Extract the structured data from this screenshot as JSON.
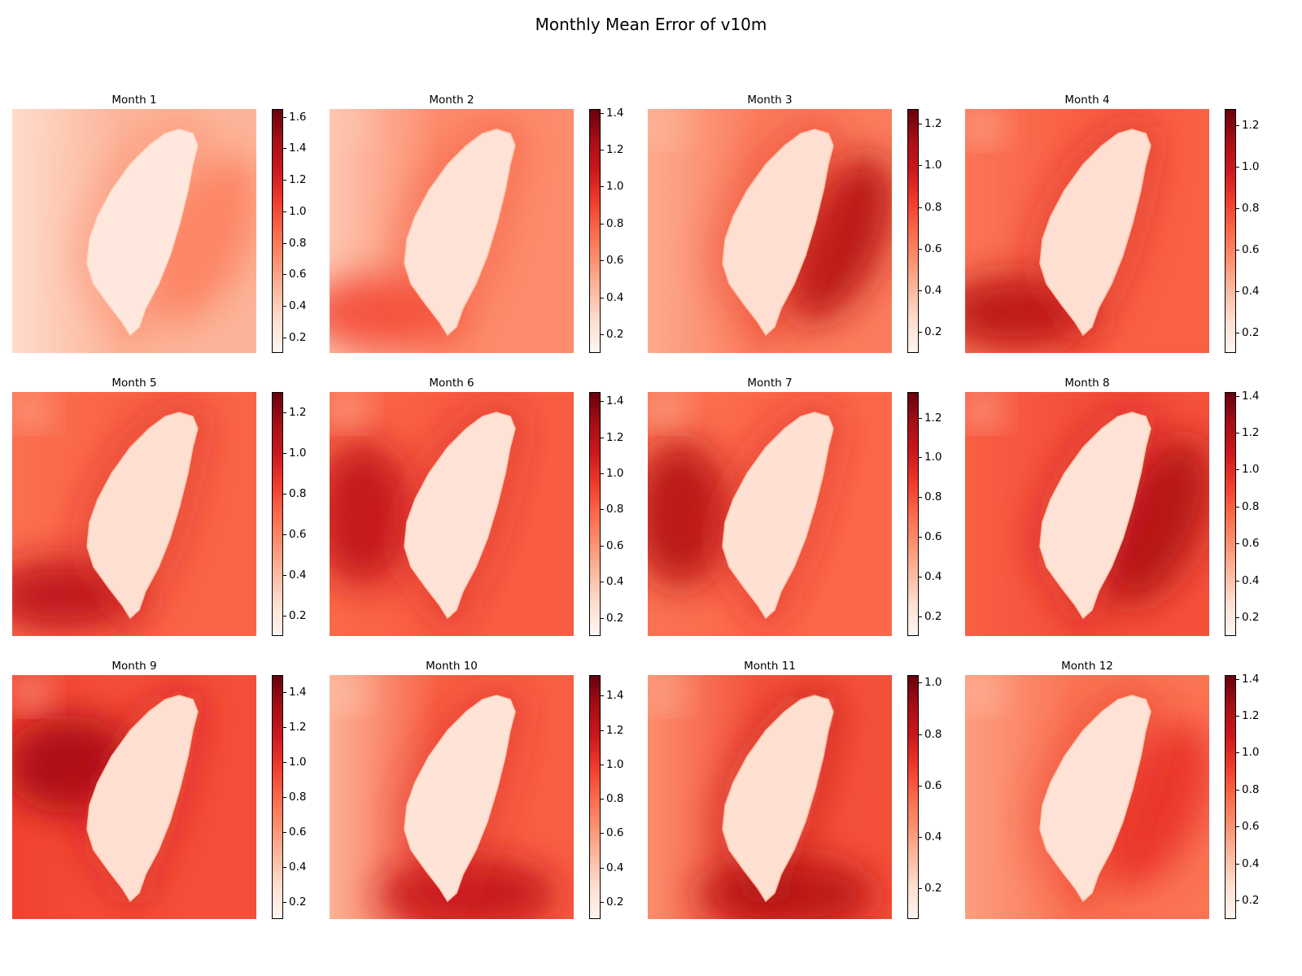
{
  "title": "Monthly Mean Error of v10m",
  "colormap": {
    "name": "Reds",
    "stops": [
      "#fff5f0",
      "#fee0d2",
      "#fcbba1",
      "#fc9272",
      "#fb6a4a",
      "#ef3b2c",
      "#cb181d",
      "#a50f15",
      "#67000d"
    ]
  },
  "chart_data": [
    {
      "type": "heatmap",
      "title": "Month 1",
      "vmin": 0.1,
      "vmax": 1.65,
      "ticks": [
        "0.2",
        "0.4",
        "0.6",
        "0.8",
        "1.0",
        "1.2",
        "1.4",
        "1.6"
      ],
      "ocean_level": 0.52,
      "west_level": 0.32,
      "hot_level": 0.75,
      "hot_zone": "east",
      "land_level": 0.22
    },
    {
      "type": "heatmap",
      "title": "Month 2",
      "vmin": 0.1,
      "vmax": 1.42,
      "ticks": [
        "0.2",
        "0.4",
        "0.6",
        "0.8",
        "1.0",
        "1.2",
        "1.4"
      ],
      "ocean_level": 0.62,
      "west_level": 0.38,
      "hot_level": 0.85,
      "hot_zone": "southwest",
      "land_level": 0.25
    },
    {
      "type": "heatmap",
      "title": "Month 3",
      "vmin": 0.1,
      "vmax": 1.27,
      "ticks": [
        "0.2",
        "0.4",
        "0.6",
        "0.8",
        "1.0",
        "1.2"
      ],
      "ocean_level": 0.62,
      "west_level": 0.45,
      "hot_level": 1.05,
      "hot_zone": "east",
      "land_level": 0.25
    },
    {
      "type": "heatmap",
      "title": "Month 4",
      "vmin": 0.1,
      "vmax": 1.28,
      "ticks": [
        "0.2",
        "0.4",
        "0.6",
        "0.8",
        "1.0",
        "1.2"
      ],
      "ocean_level": 0.72,
      "west_level": 0.65,
      "hot_level": 1.05,
      "hot_zone": "southwest",
      "land_level": 0.25
    },
    {
      "type": "heatmap",
      "title": "Month 5",
      "vmin": 0.1,
      "vmax": 1.3,
      "ticks": [
        "0.2",
        "0.4",
        "0.6",
        "0.8",
        "1.0",
        "1.2"
      ],
      "ocean_level": 0.72,
      "west_level": 0.68,
      "hot_level": 1.05,
      "hot_zone": "southwest",
      "land_level": 0.25
    },
    {
      "type": "heatmap",
      "title": "Month 6",
      "vmin": 0.1,
      "vmax": 1.45,
      "ticks": [
        "0.2",
        "0.4",
        "0.6",
        "0.8",
        "1.0",
        "1.2",
        "1.4"
      ],
      "ocean_level": 0.82,
      "west_level": 0.78,
      "hot_level": 1.15,
      "hot_zone": "west",
      "land_level": 0.25
    },
    {
      "type": "heatmap",
      "title": "Month 7",
      "vmin": 0.1,
      "vmax": 1.33,
      "ticks": [
        "0.2",
        "0.4",
        "0.6",
        "0.8",
        "1.0",
        "1.2"
      ],
      "ocean_level": 0.72,
      "west_level": 0.68,
      "hot_level": 1.1,
      "hot_zone": "west",
      "land_level": 0.25
    },
    {
      "type": "heatmap",
      "title": "Month 8",
      "vmin": 0.1,
      "vmax": 1.42,
      "ticks": [
        "0.2",
        "0.4",
        "0.6",
        "0.8",
        "1.0",
        "1.2",
        "1.4"
      ],
      "ocean_level": 0.85,
      "west_level": 0.8,
      "hot_level": 1.2,
      "hot_zone": "east",
      "land_level": 0.25
    },
    {
      "type": "heatmap",
      "title": "Month 9",
      "vmin": 0.1,
      "vmax": 1.5,
      "ticks": [
        "0.2",
        "0.4",
        "0.6",
        "0.8",
        "1.0",
        "1.2",
        "1.4"
      ],
      "ocean_level": 0.9,
      "west_level": 0.95,
      "hot_level": 1.3,
      "hot_zone": "northwest",
      "land_level": 0.28
    },
    {
      "type": "heatmap",
      "title": "Month 10",
      "vmin": 0.1,
      "vmax": 1.52,
      "ticks": [
        "0.2",
        "0.4",
        "0.6",
        "0.8",
        "1.0",
        "1.2",
        "1.4"
      ],
      "ocean_level": 0.85,
      "west_level": 0.5,
      "hot_level": 1.2,
      "hot_zone": "south",
      "land_level": 0.25
    },
    {
      "type": "heatmap",
      "title": "Month 11",
      "vmin": 0.08,
      "vmax": 1.03,
      "ticks": [
        "0.2",
        "0.4",
        "0.6",
        "0.8",
        "1.0"
      ],
      "ocean_level": 0.62,
      "west_level": 0.45,
      "hot_level": 0.85,
      "hot_zone": "south",
      "land_level": 0.2
    },
    {
      "type": "heatmap",
      "title": "Month 12",
      "vmin": 0.1,
      "vmax": 1.42,
      "ticks": [
        "0.2",
        "0.4",
        "0.6",
        "0.8",
        "1.0",
        "1.2",
        "1.4"
      ],
      "ocean_level": 0.72,
      "west_level": 0.55,
      "hot_level": 0.95,
      "hot_zone": "east",
      "land_level": 0.25
    }
  ]
}
